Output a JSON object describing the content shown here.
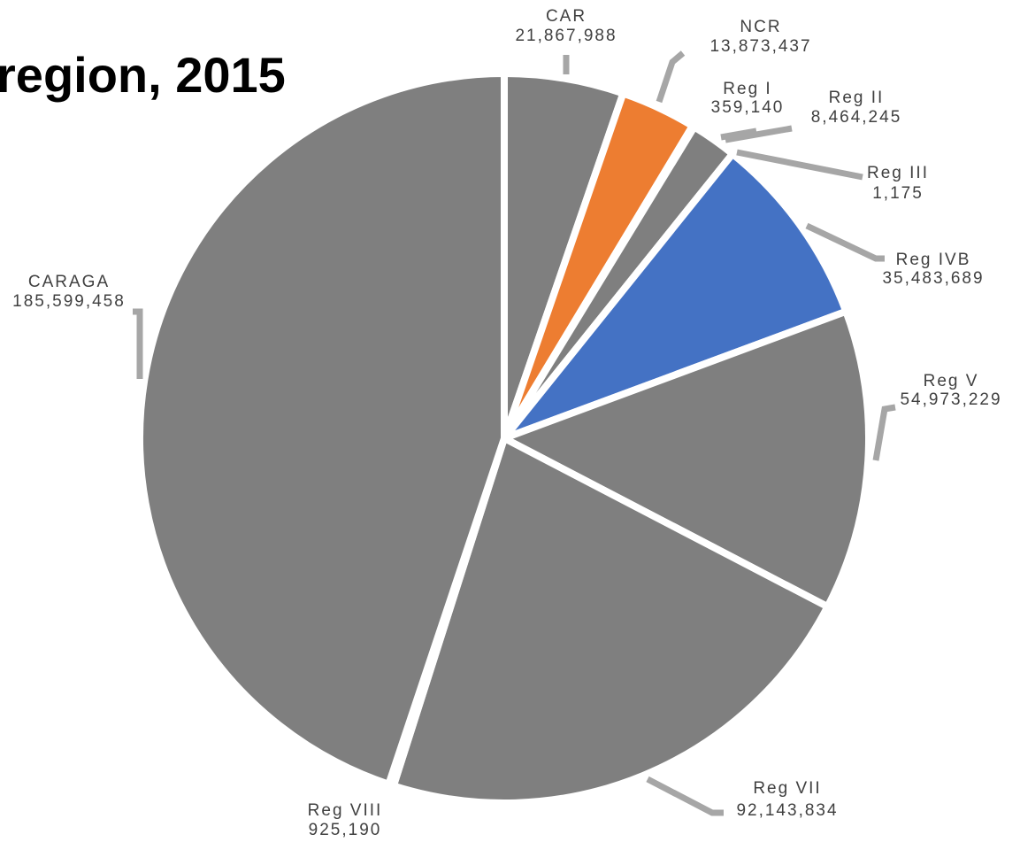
{
  "chart_data": {
    "type": "pie",
    "title": "region, 2015",
    "categories": [
      "CAR",
      "NCR",
      "Reg I",
      "Reg II",
      "Reg III",
      "Reg IVB",
      "Reg V",
      "Reg VII",
      "Reg VIII",
      "CARAGA"
    ],
    "values": [
      21867988,
      13873437,
      359140,
      8464245,
      1175,
      35483689,
      54973229,
      92143834,
      925190,
      185599458
    ],
    "value_labels": [
      "21,867,988",
      "13,873,437",
      "359,140",
      "8,464,245",
      "1,175",
      "35,483,689",
      "54,973,229",
      "92,143,834",
      "925,190",
      "185,599,458"
    ],
    "colors": [
      "#7f7f7f",
      "#ed7d31",
      "#7f7f7f",
      "#7f7f7f",
      "#7f7f7f",
      "#4472c4",
      "#7f7f7f",
      "#7f7f7f",
      "#7f7f7f",
      "#7f7f7f"
    ]
  }
}
